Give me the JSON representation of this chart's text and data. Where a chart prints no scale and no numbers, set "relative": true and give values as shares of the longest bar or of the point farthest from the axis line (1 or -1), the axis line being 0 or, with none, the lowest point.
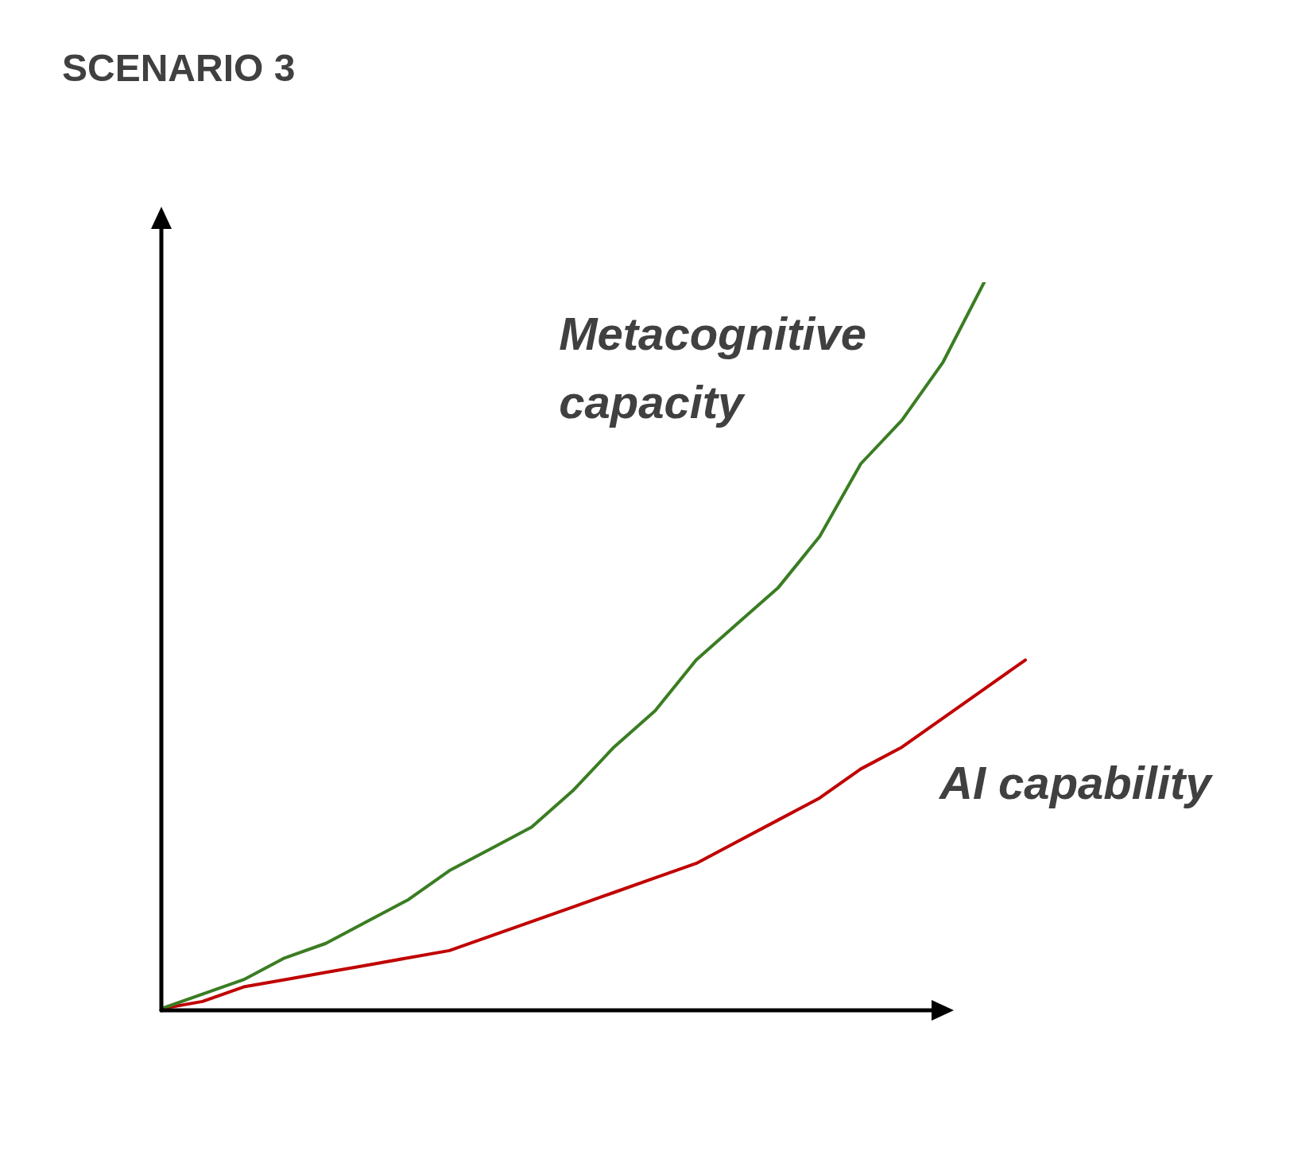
{
  "chart_data": {
    "type": "line",
    "title": "SCENARIO 3",
    "relative": true,
    "legend": false,
    "grid": false,
    "marker": "none",
    "line_style": "solid",
    "categories": [
      null,
      null,
      null,
      null,
      null,
      null,
      null,
      null,
      null,
      null,
      null,
      null,
      null,
      null,
      null,
      null,
      null,
      null,
      null,
      null,
      null,
      null
    ],
    "series": [
      {
        "name": "Metacognitive capacity",
        "color": "#3a7d22",
        "values": [
          0,
          0.02,
          0.04,
          0.07,
          0.09,
          0.12,
          0.15,
          0.19,
          0.22,
          0.25,
          0.3,
          0.36,
          0.41,
          0.48,
          0.53,
          0.58,
          0.65,
          0.75,
          0.81,
          0.89,
          1,
          null
        ]
      },
      {
        "name": "AI capability",
        "color": "#c00000",
        "values": [
          0,
          0.01,
          0.03,
          0.04,
          0.05,
          0.06,
          0.07,
          0.08,
          0.1,
          0.12,
          0.14,
          0.16,
          0.18,
          0.2,
          0.23,
          0.26,
          0.29,
          0.33,
          0.36,
          0.4,
          0.44,
          0.48
        ]
      }
    ]
  }
}
